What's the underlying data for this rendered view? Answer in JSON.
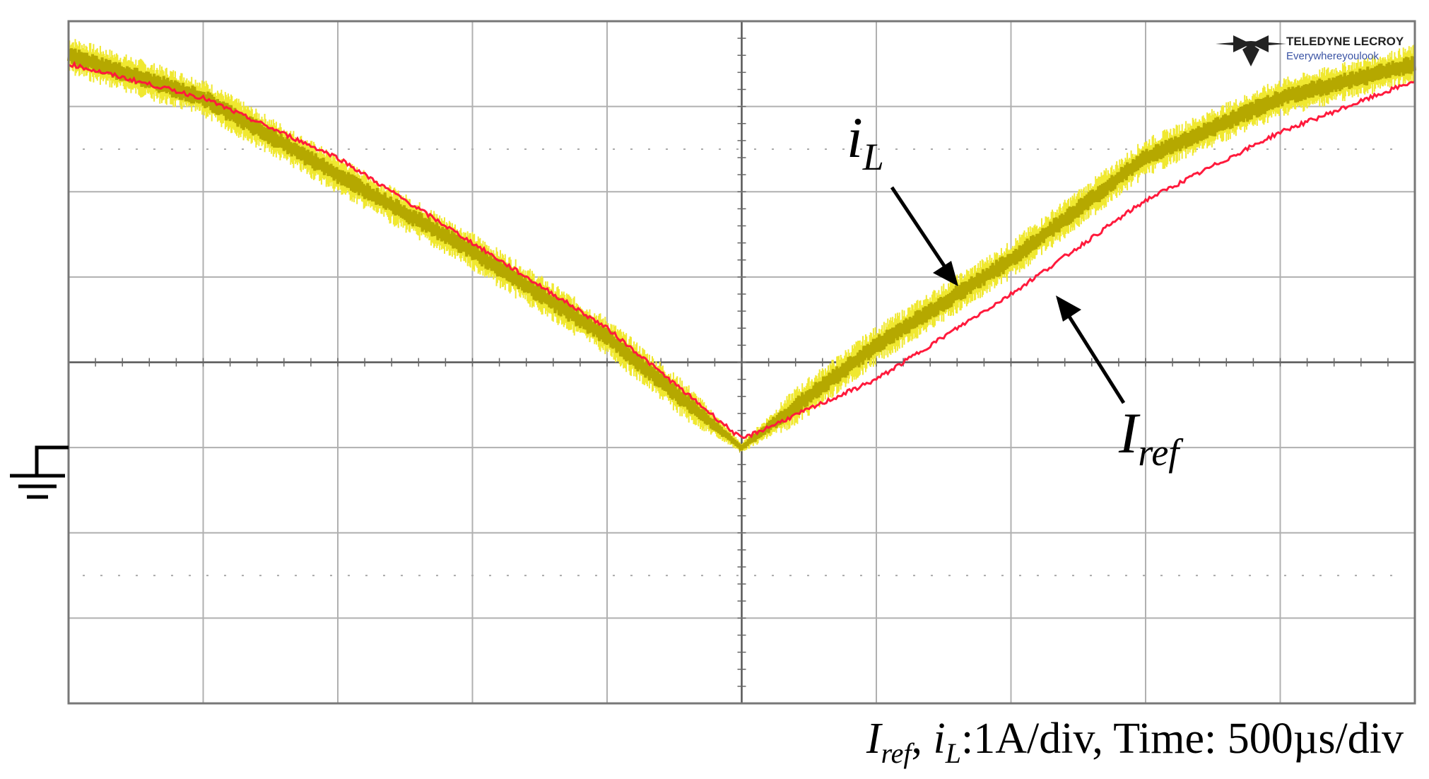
{
  "logo": {
    "brand": "TELEDYNE LECROY",
    "tagline": "Everywhereyoulook"
  },
  "labels": {
    "il_main": "i",
    "il_sub": "L",
    "iref_main": "I",
    "iref_sub": "ref"
  },
  "caption": {
    "iref_main": "I",
    "iref_sub": "ref",
    "sep": ", ",
    "il_main": "i",
    "il_sub": "L",
    "rest": ":1A/div, Time: 500µs/div"
  },
  "colors": {
    "i_L": "#b5a800",
    "i_L_envelope": "#f0e830",
    "I_ref": "#ff1a3c"
  },
  "chart_data": {
    "type": "line",
    "x_unit": "div",
    "y_unit": "div",
    "xlim": [
      0,
      10
    ],
    "ylim": [
      -4,
      4
    ],
    "scale": {
      "vertical": "1A/div",
      "horizontal": "500µs/div"
    },
    "grid": true,
    "ground_level_div": -1,
    "series": [
      {
        "name": "i_L",
        "x": [
          0,
          1,
          2,
          3,
          4,
          5,
          6,
          7,
          8,
          9,
          10
        ],
        "y": [
          3.6,
          3.1,
          2.2,
          1.3,
          0.3,
          -1.0,
          0.2,
          1.2,
          2.4,
          3.1,
          3.5
        ],
        "ripple_div": 0.4
      },
      {
        "name": "I_ref",
        "x": [
          0,
          1,
          2,
          3,
          4,
          5,
          6,
          7,
          8,
          9,
          10
        ],
        "y": [
          3.5,
          3.1,
          2.4,
          1.4,
          0.4,
          -0.9,
          -0.2,
          0.8,
          1.9,
          2.7,
          3.3
        ]
      }
    ]
  }
}
